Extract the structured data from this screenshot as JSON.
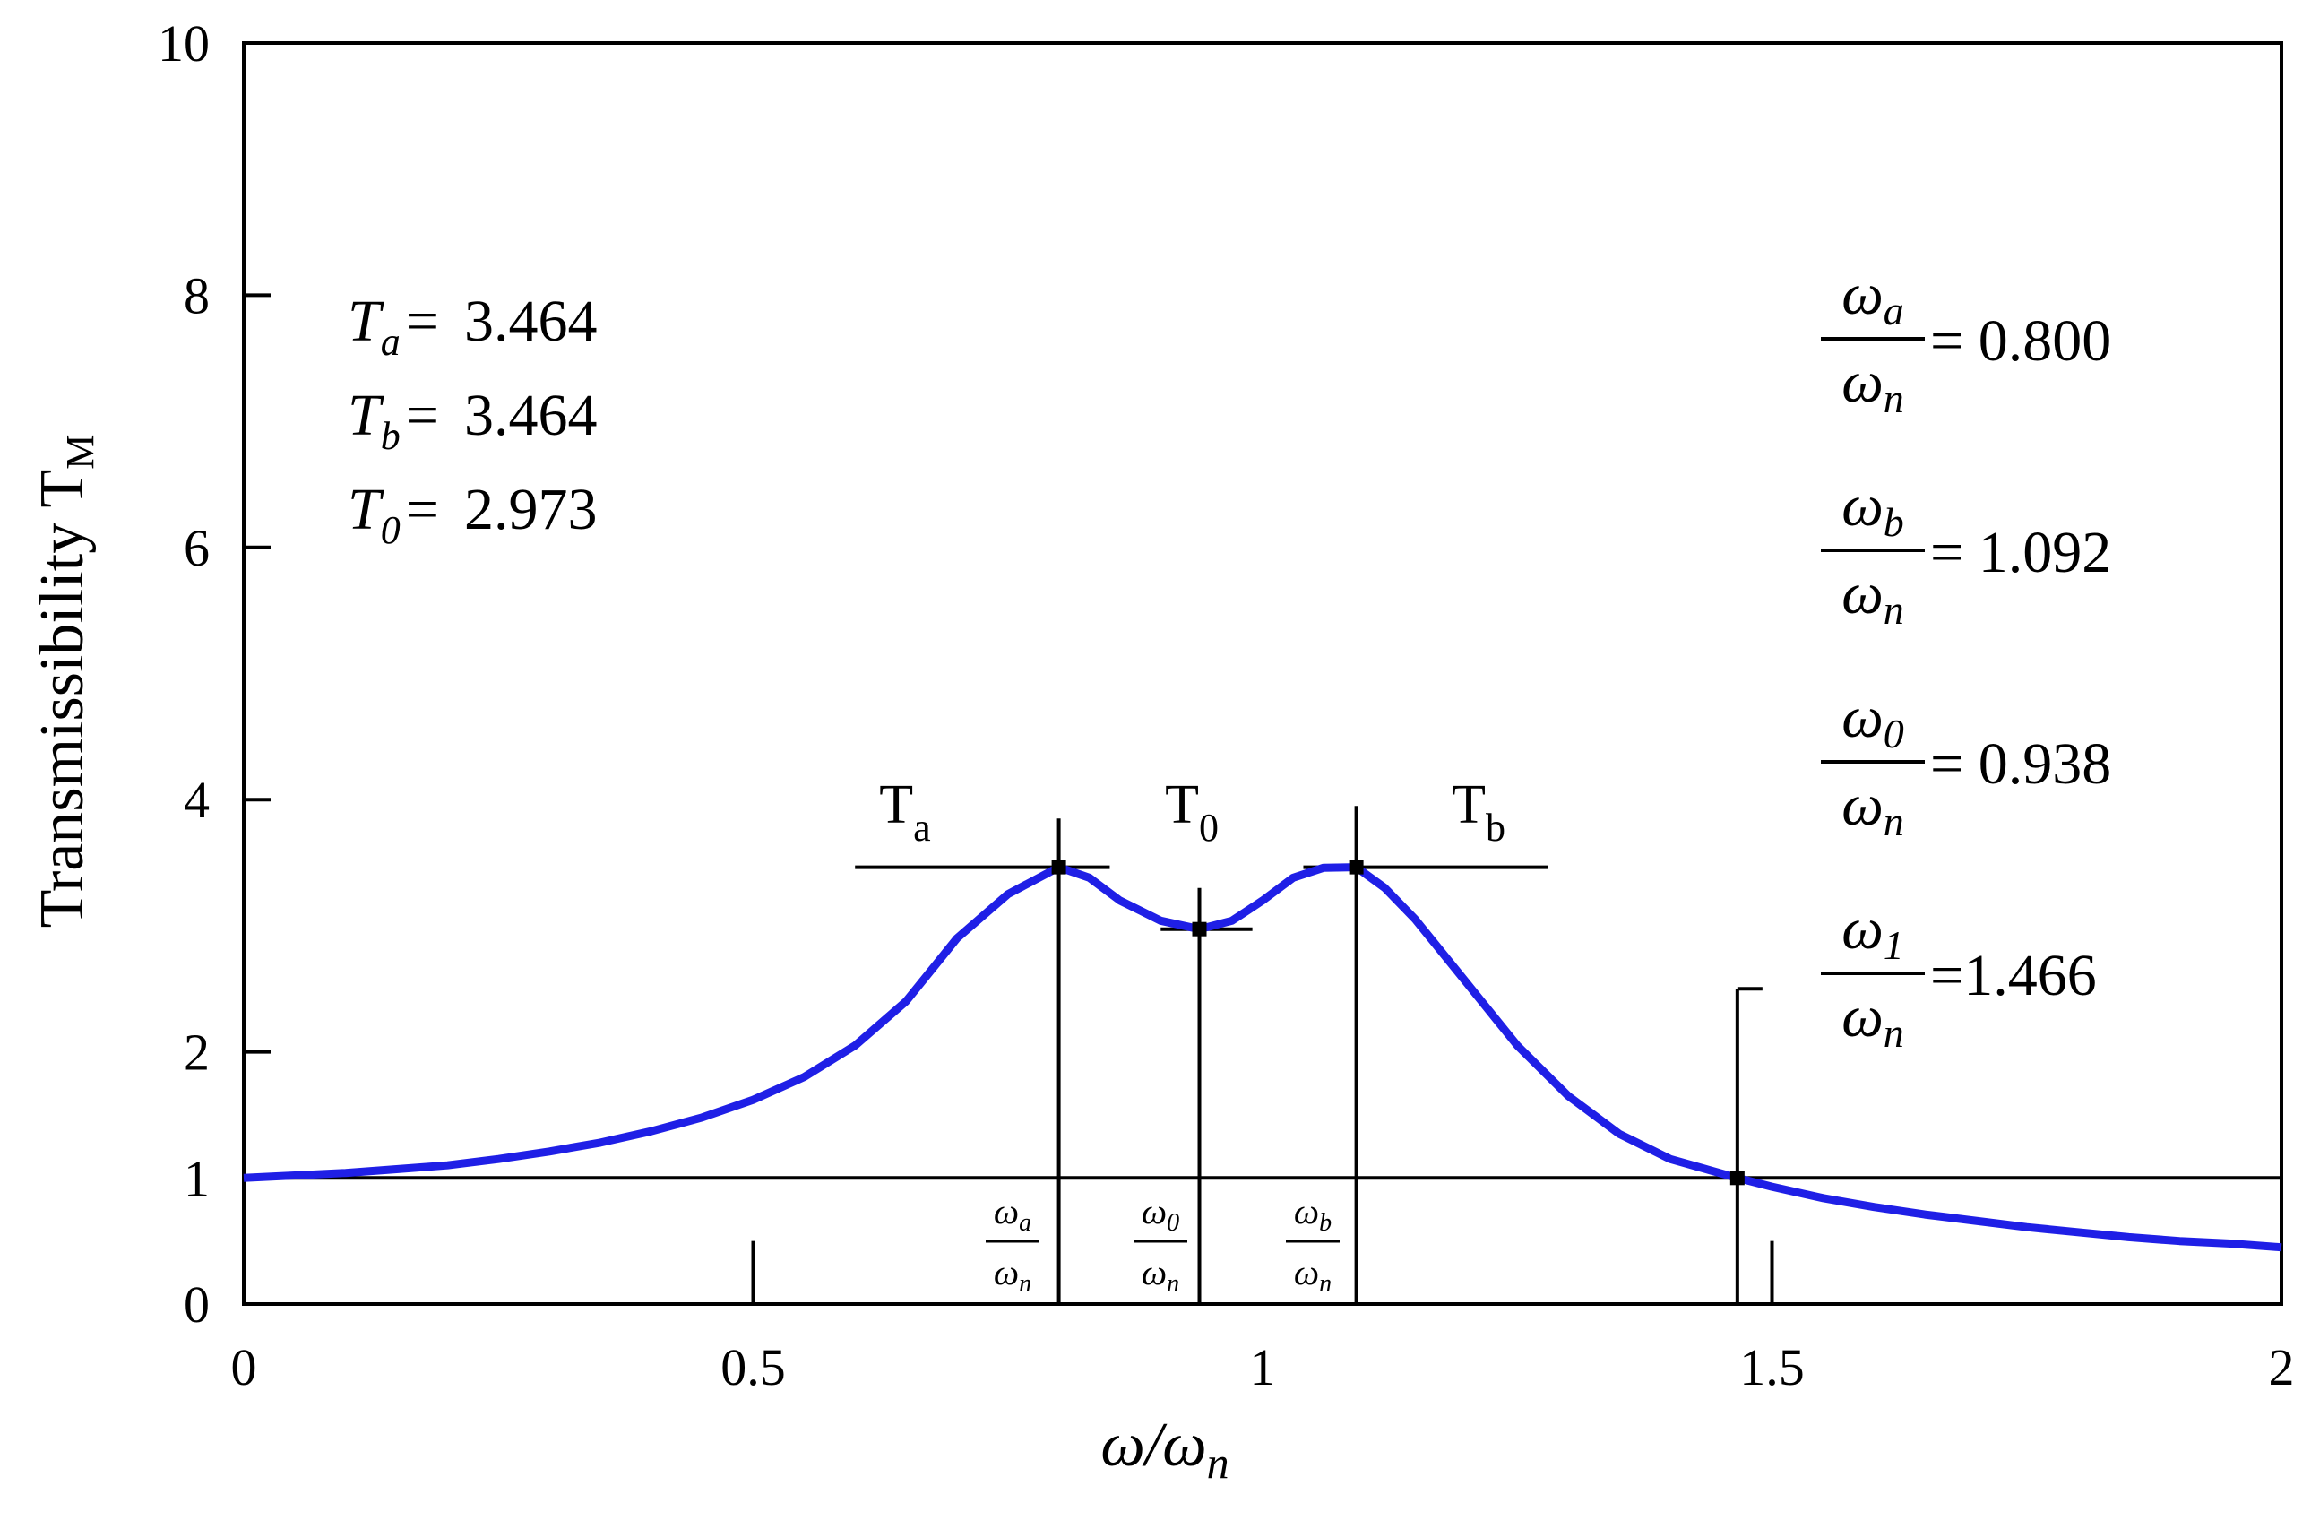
{
  "chart_data": {
    "type": "line",
    "xlabel": "ω/ω",
    "xlabel_sub": "n",
    "ylabel": "Transmissibility T",
    "ylabel_sub": "M",
    "xlim": [
      0,
      2
    ],
    "ylim": [
      0,
      10
    ],
    "x_ticks": [
      "0",
      "0.5",
      "1",
      "1.5",
      "2"
    ],
    "y_ticks": [
      "0",
      "1",
      "2",
      "4",
      "6",
      "8",
      "10"
    ],
    "y_tick_values": [
      0,
      1,
      2,
      4,
      6,
      8,
      10
    ],
    "x_tick_values": [
      0,
      0.5,
      1,
      1.5,
      2
    ],
    "series": [
      {
        "color": "#1f1fe6",
        "x": [
          0,
          0.05,
          0.1,
          0.15,
          0.2,
          0.25,
          0.3,
          0.35,
          0.4,
          0.45,
          0.5,
          0.55,
          0.6,
          0.65,
          0.7,
          0.75,
          0.8,
          0.83,
          0.86,
          0.9,
          0.938,
          0.97,
          1.0,
          1.03,
          1.06,
          1.092,
          1.12,
          1.15,
          1.2,
          1.25,
          1.3,
          1.35,
          1.4,
          1.466,
          1.5,
          1.55,
          1.6,
          1.65,
          1.7,
          1.75,
          1.8,
          1.85,
          1.9,
          1.95,
          2.0
        ],
        "y": [
          1.0,
          1.02,
          1.04,
          1.07,
          1.1,
          1.15,
          1.21,
          1.28,
          1.37,
          1.48,
          1.62,
          1.8,
          2.05,
          2.4,
          2.9,
          3.25,
          3.464,
          3.38,
          3.2,
          3.04,
          2.973,
          3.04,
          3.2,
          3.38,
          3.46,
          3.464,
          3.3,
          3.05,
          2.55,
          2.05,
          1.65,
          1.35,
          1.15,
          1.0,
          0.93,
          0.84,
          0.77,
          0.71,
          0.66,
          0.61,
          0.57,
          0.53,
          0.5,
          0.48,
          0.45
        ]
      }
    ],
    "reference_lines": {
      "horizontal_y": 1,
      "verticals": [
        {
          "x": 0.8,
          "y_top": 3.85
        },
        {
          "x": 0.938,
          "y_top": 3.3
        },
        {
          "x": 1.092,
          "y_top": 3.95
        },
        {
          "x": 1.466,
          "y_top": 2.5
        }
      ],
      "horizontal_segments": [
        {
          "x1": 0.6,
          "x2": 0.85,
          "y": 3.464
        },
        {
          "x1": 0.9,
          "x2": 0.99,
          "y": 2.973
        },
        {
          "x1": 1.04,
          "x2": 1.28,
          "y": 3.464
        }
      ],
      "short_ticks": [
        {
          "x": 0.5,
          "y_top": 0.5
        },
        {
          "x": 1.5,
          "y_top": 0.5
        }
      ]
    },
    "peak_labels": {
      "Ta": {
        "main": "T",
        "sub": "a"
      },
      "T0": {
        "main": "T",
        "sub": "0"
      },
      "Tb": {
        "main": "T",
        "sub": "b"
      }
    },
    "freq_labels": {
      "a": {
        "num": "ω",
        "num_sub": "a",
        "den": "ω",
        "den_sub": "n"
      },
      "zero": {
        "num": "ω",
        "num_sub": "0",
        "den": "ω",
        "den_sub": "n"
      },
      "b": {
        "num": "ω",
        "num_sub": "b",
        "den": "ω",
        "den_sub": "n"
      }
    },
    "left_annotations": [
      {
        "sym": "T",
        "sub": "a",
        "eq": "=",
        "value": "3.464"
      },
      {
        "sym": "T",
        "sub": "b",
        "eq": "=",
        "value": "3.464"
      },
      {
        "sym": "T",
        "sub": "0",
        "eq": "=",
        "value": "2.973"
      }
    ],
    "right_annotations": [
      {
        "num": "ω",
        "num_sub": "a",
        "den": "ω",
        "den_sub": "n",
        "text": "= 0.800"
      },
      {
        "num": "ω",
        "num_sub": "b",
        "den": "ω",
        "den_sub": "n",
        "text": "= 1.092"
      },
      {
        "num": "ω",
        "num_sub": "0",
        "den": "ω",
        "den_sub": "n",
        "text": "= 0.938"
      },
      {
        "num": "ω",
        "num_sub": "1",
        "den": "ω",
        "den_sub": "n",
        "text": "=1.466"
      }
    ]
  }
}
